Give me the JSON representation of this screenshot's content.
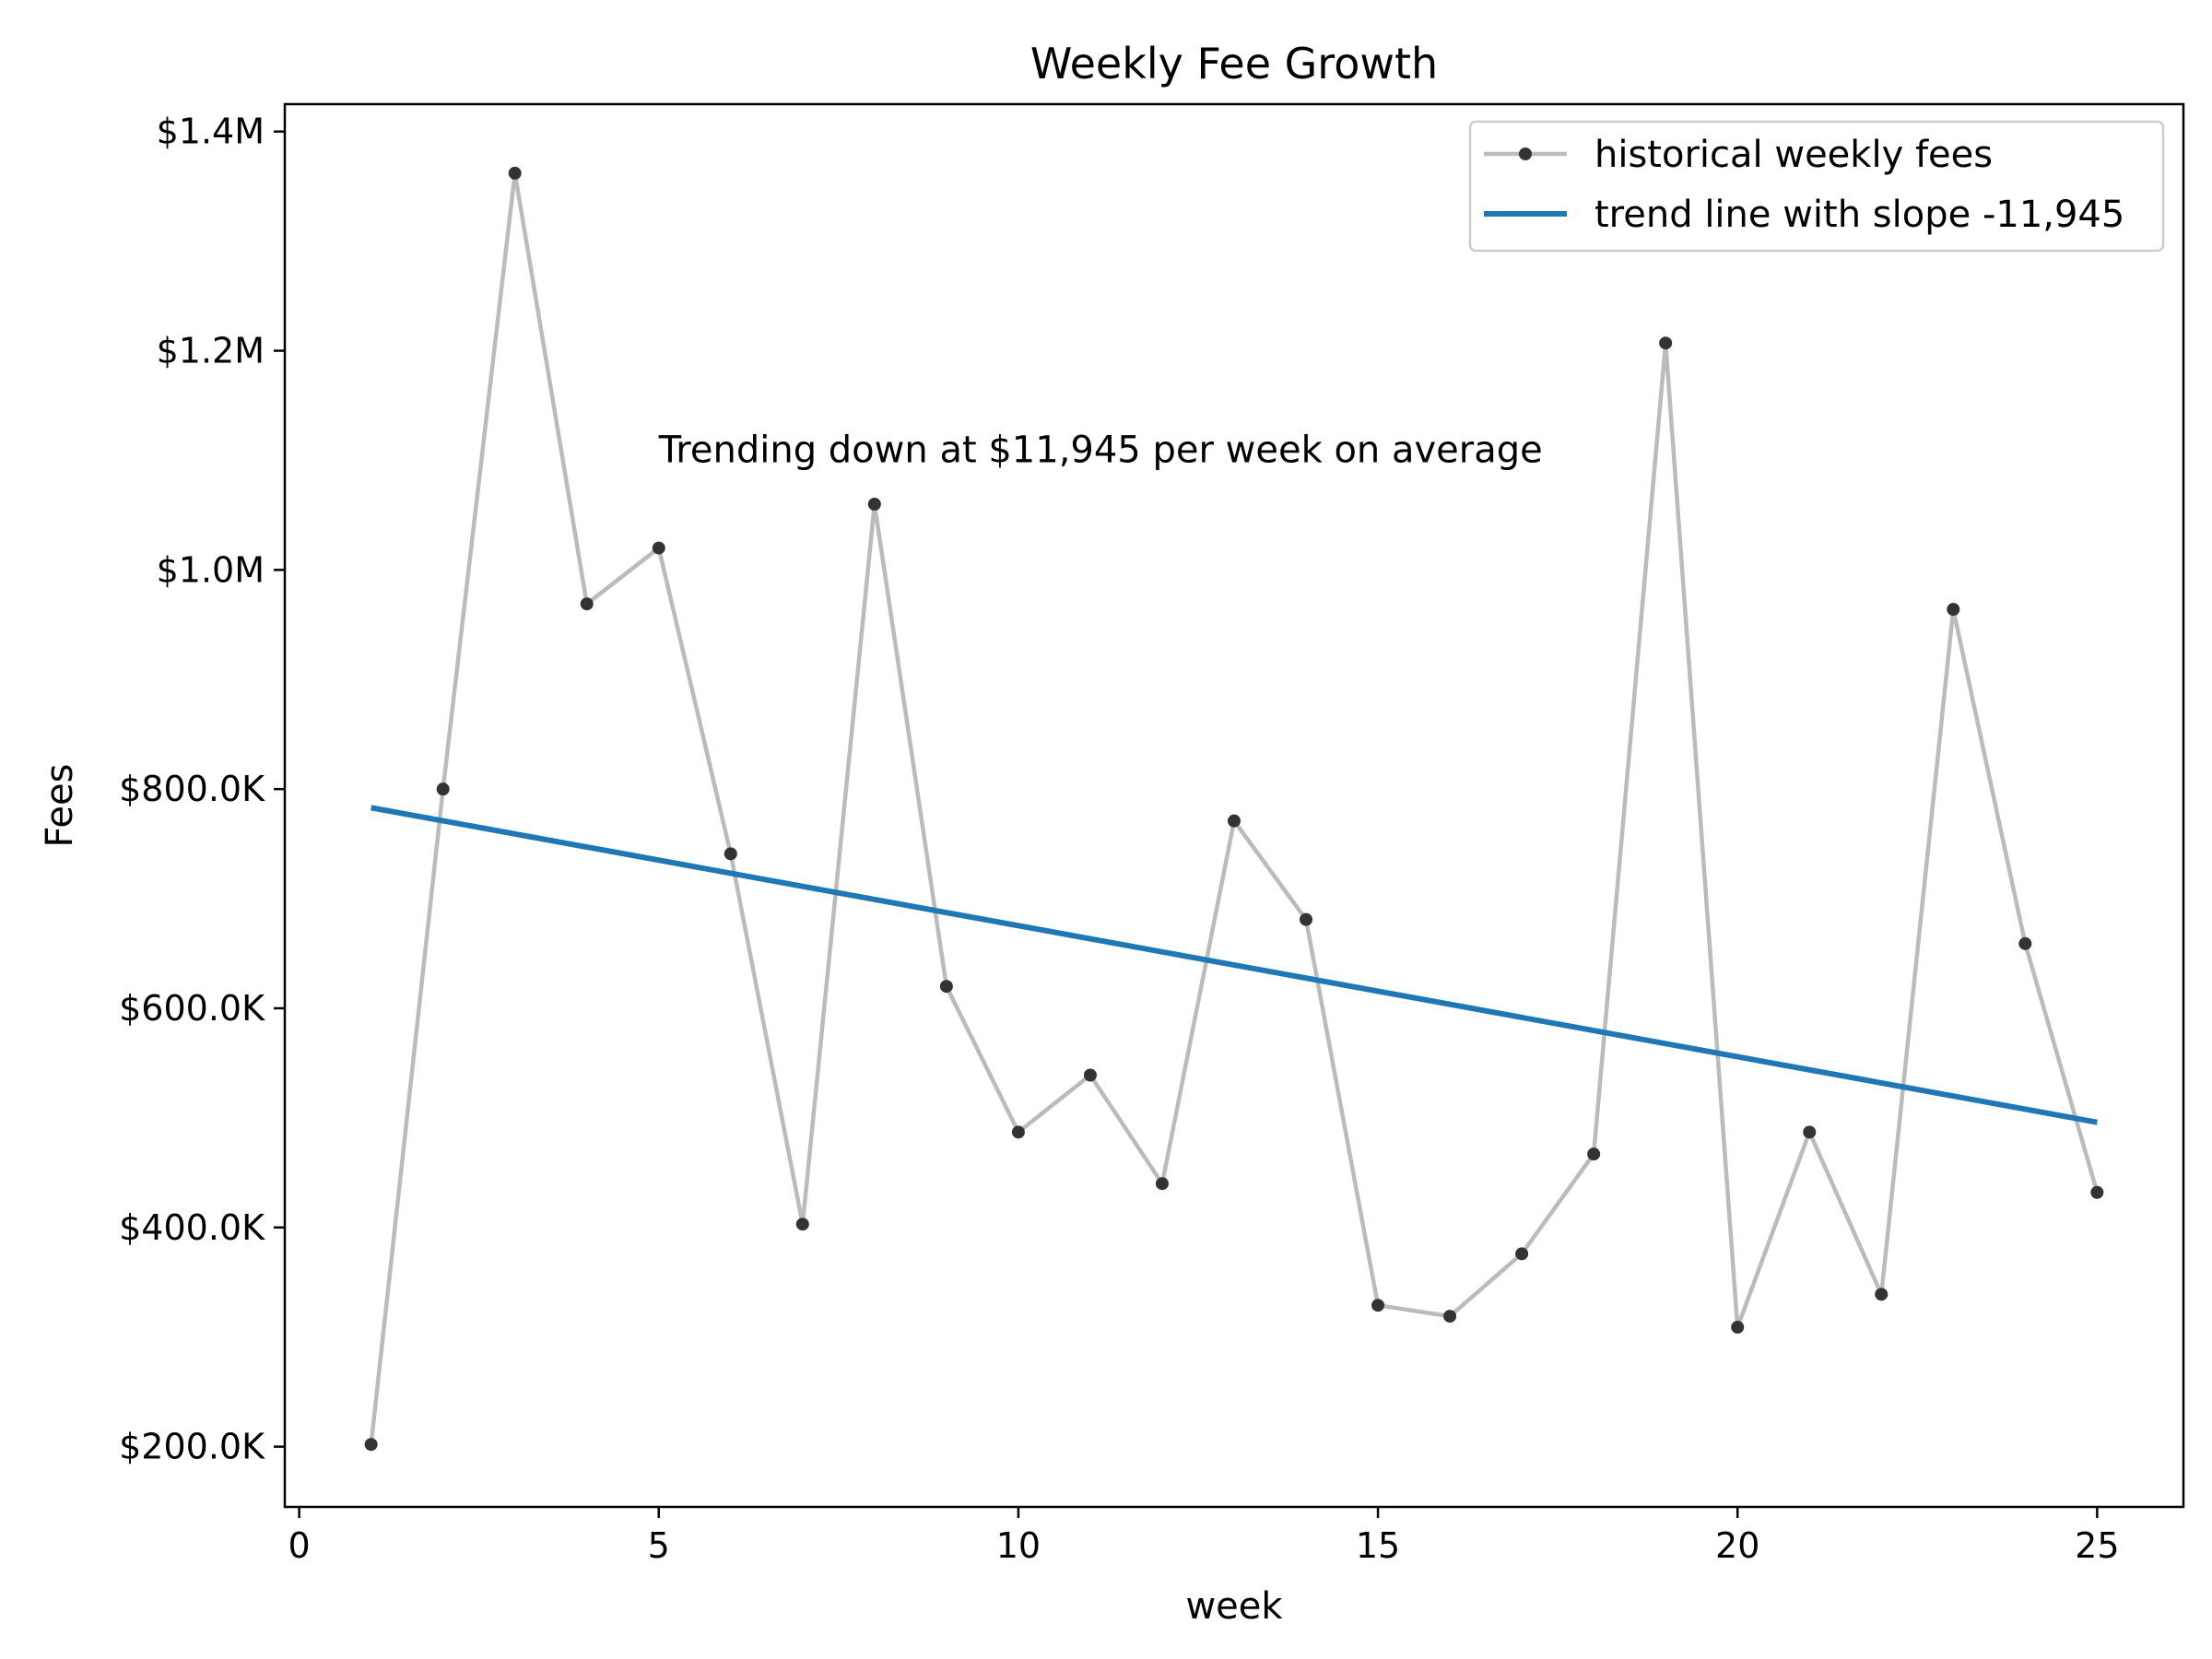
{
  "chart_data": {
    "type": "line",
    "title": "Weekly Fee Growth",
    "xlabel": "week",
    "ylabel": "Fees",
    "xlim": [
      -0.2,
      26.2
    ],
    "ylim": [
      145000,
      1425000
    ],
    "xticks": [
      0,
      5,
      10,
      15,
      20,
      25
    ],
    "yticks": [
      {
        "value": 200000,
        "label": "$200.0K"
      },
      {
        "value": 400000,
        "label": "$400.0K"
      },
      {
        "value": 600000,
        "label": "$600.0K"
      },
      {
        "value": 800000,
        "label": "$800.0K"
      },
      {
        "value": 1000000,
        "label": "$1.0M"
      },
      {
        "value": 1200000,
        "label": "$1.2M"
      },
      {
        "value": 1400000,
        "label": "$1.4M"
      }
    ],
    "grid": false,
    "legend_position": "top-right",
    "series": [
      {
        "name": "historical weekly fees",
        "color": "#bbbbbb",
        "marker_color": "#333333",
        "x": [
          1,
          2,
          3,
          4,
          5,
          6,
          7,
          8,
          9,
          10,
          11,
          12,
          13,
          14,
          15,
          16,
          17,
          18,
          19,
          20,
          21,
          22,
          23,
          24,
          25
        ],
        "values": [
          202000,
          800000,
          1362000,
          969000,
          1020000,
          741000,
          403000,
          1060000,
          620000,
          487000,
          539000,
          440000,
          771000,
          681000,
          329000,
          319000,
          376000,
          467000,
          1207000,
          309000,
          487000,
          339000,
          964000,
          659000,
          432000
        ]
      },
      {
        "name": "trend line with slope -11,945",
        "color": "#1f77b4",
        "x": [
          1,
          25
        ],
        "values": [
          783000,
          496000
        ]
      }
    ],
    "annotations": [
      {
        "text": "Trending down at $11,945 per week on average",
        "x": 5,
        "y": 1110000
      }
    ]
  }
}
